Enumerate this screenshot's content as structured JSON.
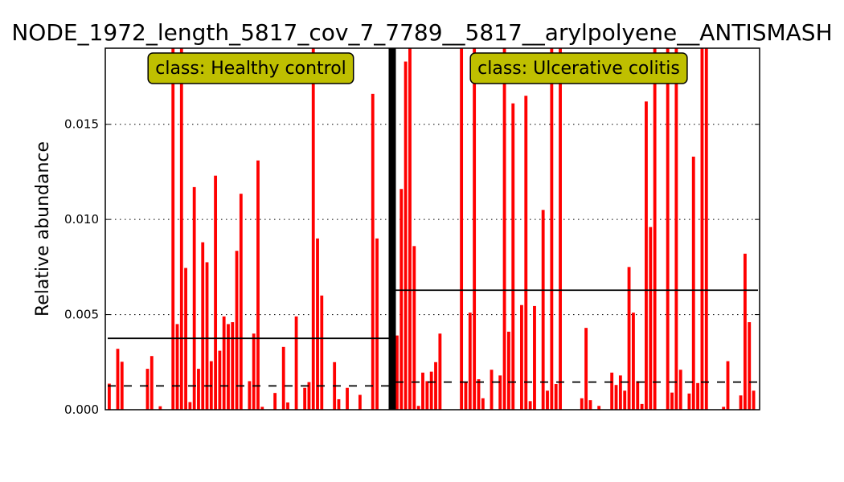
{
  "chart_data": {
    "type": "bar",
    "title": "NODE_1972_length_5817_cov_7_7789__5817__arylpolyene__ANTISMASH",
    "xlabel": "",
    "ylabel": "Relative abundance",
    "ylim": [
      0,
      0.019
    ],
    "yticks": [
      {
        "value": 0.0,
        "label": "0.000"
      },
      {
        "value": 0.005,
        "label": "0.005"
      },
      {
        "value": 0.01,
        "label": "0.010"
      },
      {
        "value": 0.015,
        "label": "0.015"
      }
    ],
    "grid": "horizontal-dotted",
    "bar_color": "#ff0000",
    "classes": [
      {
        "name": "class: Healthy control",
        "label_color": "#bfbf00",
        "mean": 0.00375,
        "median": 0.00125,
        "values": [
          0.00137,
          0,
          0.0032,
          0.00252,
          0,
          0,
          0,
          0,
          0,
          0.00215,
          0.00282,
          0,
          0.00018,
          0,
          0,
          0.019,
          0.0045,
          0.019,
          0.00745,
          0.0004,
          0.0117,
          0.00215,
          0.0088,
          0.00775,
          0.00255,
          0.0123,
          0.0031,
          0.0049,
          0.0045,
          0.0046,
          0.00835,
          0.01135,
          0,
          0.0015,
          0.004,
          0.0131,
          0.00015,
          0,
          0,
          0.00088,
          0,
          0.0033,
          0.00038,
          0,
          0.0049,
          0,
          0.00115,
          0.00145,
          0.019,
          0.009,
          0.006,
          0,
          0,
          0.0025,
          0.00055,
          0,
          0.00115,
          0,
          0,
          0.00078,
          0,
          0,
          0.0166,
          0.009,
          0,
          0
        ]
      },
      {
        "name": "class: Ulcerative colitis",
        "label_color": "#bfbf00",
        "mean": 0.00628,
        "median": 0.00145,
        "values": [
          0.0039,
          0.0116,
          0.0183,
          0.019,
          0.0086,
          0.0002,
          0.00195,
          0.0015,
          0.002,
          0.0025,
          0.004,
          0,
          0,
          0,
          0,
          0.019,
          0.00145,
          0.0051,
          0.019,
          0.0016,
          0.0006,
          0,
          0.0021,
          0,
          0.0018,
          0.019,
          0.0041,
          0.0161,
          0,
          0.0055,
          0.0165,
          0.00045,
          0.00545,
          0,
          0.0105,
          0.001,
          0.019,
          0.00135,
          0.019,
          0,
          0,
          0,
          0,
          0.0006,
          0.0043,
          0.0005,
          0,
          0.0002,
          0,
          0,
          0.00195,
          0.0013,
          0.0018,
          0.001,
          0.0075,
          0.0051,
          0.0015,
          0.0003,
          0.0162,
          0.0096,
          0.019,
          0,
          0,
          0.019,
          0.0009,
          0.019,
          0.0021,
          0,
          0.00085,
          0.0133,
          0.0014,
          0.019,
          0.019,
          0,
          0,
          0,
          0.00015,
          0.00255,
          0,
          0,
          0.00075,
          0.0082,
          0.0046,
          0.001
        ]
      }
    ]
  }
}
